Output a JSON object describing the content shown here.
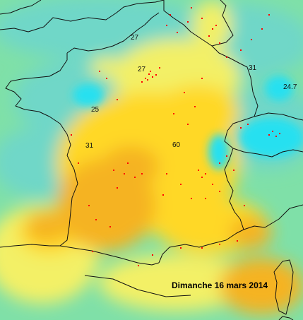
{
  "map": {
    "caption": "Dimanche 16 mars 2014",
    "colors": {
      "sea_green": "#7fe0a8",
      "teal": "#6fd7c8",
      "cyan": "#26e0f0",
      "light_yellow": "#f3f066",
      "yellow": "#ffd828",
      "orange": "#f5b323",
      "border": "#111111",
      "station": "#ff0000"
    },
    "contour_labels": [
      {
        "id": "27-north",
        "text": "27"
      },
      {
        "id": "27-paris",
        "text": "27"
      },
      {
        "id": "31-east",
        "text": "31"
      },
      {
        "id": "24-7",
        "text": "24.7"
      },
      {
        "id": "25-west",
        "text": "25"
      },
      {
        "id": "31-west",
        "text": "31"
      },
      {
        "id": "60-center",
        "text": "60"
      }
    ]
  }
}
